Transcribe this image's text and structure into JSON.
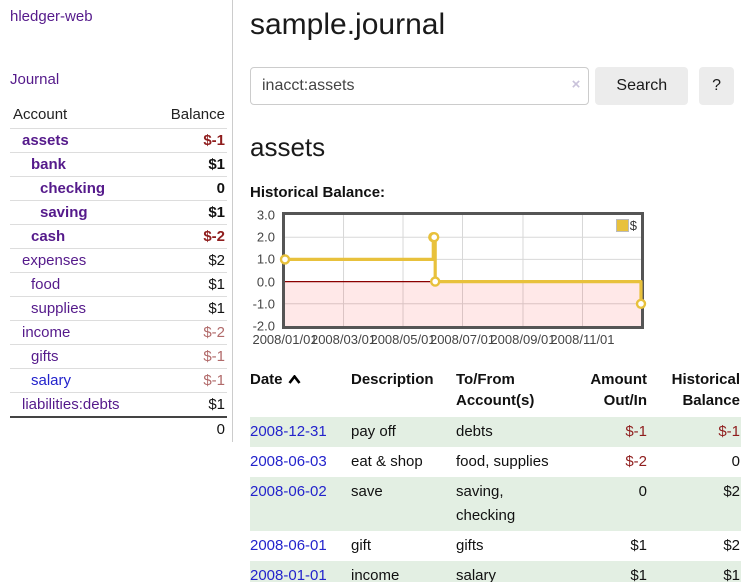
{
  "app": {
    "brand": "hledger-web",
    "nav_journal": "Journal"
  },
  "sidebar": {
    "headers": {
      "account": "Account",
      "balance": "Balance"
    },
    "accounts": [
      {
        "name": "assets",
        "level": 1,
        "bold": true,
        "balance": "$-1",
        "neg": "strong"
      },
      {
        "name": "bank",
        "level": 2,
        "bold": true,
        "balance": "$1"
      },
      {
        "name": "checking",
        "level": 3,
        "bold": true,
        "balance": "0"
      },
      {
        "name": "saving",
        "level": 3,
        "bold": true,
        "balance": "$1"
      },
      {
        "name": "cash",
        "level": 2,
        "bold": true,
        "balance": "$-2",
        "neg": "strong"
      },
      {
        "name": "expenses",
        "level": 1,
        "bold": false,
        "balance": "$2"
      },
      {
        "name": "food",
        "level": 2,
        "bold": false,
        "balance": "$1"
      },
      {
        "name": "supplies",
        "level": 2,
        "bold": false,
        "balance": "$1"
      },
      {
        "name": "income",
        "level": 1,
        "bold": false,
        "balance": "$-2",
        "neg": "light"
      },
      {
        "name": "gifts",
        "level": 2,
        "bold": false,
        "balance": "$-1",
        "neg": "light"
      },
      {
        "name": "salary",
        "level": 2,
        "bold": false,
        "balance": "$-1",
        "neg": "light",
        "link_color": "blue"
      },
      {
        "name": "liabilities:debts",
        "level": 1,
        "bold": false,
        "balance": "$1"
      }
    ],
    "total": "0"
  },
  "main": {
    "title": "sample.journal",
    "search": {
      "value": "inacct:assets",
      "clear_icon": "×",
      "search_button": "Search",
      "help_button": "?"
    },
    "account_heading": "assets",
    "section_heading": "Historical Balance:"
  },
  "chart_data": {
    "type": "line",
    "steps": true,
    "title": "Historical Balance:",
    "series": [
      {
        "name": "$",
        "points": [
          [
            "2008-01-01",
            1
          ],
          [
            "2008-06-01",
            2
          ],
          [
            "2008-06-02",
            2
          ],
          [
            "2008-06-03",
            0
          ],
          [
            "2008-12-31",
            -1
          ]
        ]
      }
    ],
    "x_range": [
      "2008-01-01",
      "2008-12-31"
    ],
    "ylim": [
      -2.0,
      3.0
    ],
    "ytick_values": [
      3,
      2,
      1,
      0,
      -1,
      -2
    ],
    "yticks": [
      "3.0",
      "2.0",
      "1.0",
      "0.0",
      "-1.0",
      "-2.0"
    ],
    "xticks": [
      {
        "date": "2008-01-01",
        "label": "2008/01/01"
      },
      {
        "date": "2008-03-01",
        "label": "2008/03/01"
      },
      {
        "date": "2008-05-01",
        "label": "2008/05/01"
      },
      {
        "date": "2008-07-01",
        "label": "2008/07/01"
      },
      {
        "date": "2008-09-01",
        "label": "2008/09/01"
      },
      {
        "date": "2008-11-01",
        "label": "2008/11/01"
      }
    ],
    "legend": {
      "label": "$",
      "position": "top-right"
    },
    "grid": true,
    "negative_region_shaded_below": 0
  },
  "register": {
    "headers": {
      "date": "Date",
      "description": "Description",
      "accounts": "To/From Account(s)",
      "amount": "Amount Out/In",
      "balance": "Historical Balance"
    },
    "rows": [
      {
        "date": "2008-12-31",
        "description": "pay off",
        "accounts": "debts",
        "amount": "$-1",
        "amount_neg": true,
        "balance": "$-1",
        "balance_neg": true
      },
      {
        "date": "2008-06-03",
        "description": "eat & shop",
        "accounts": "food, supplies",
        "amount": "$-2",
        "amount_neg": true,
        "balance": "0",
        "balance_neg": false
      },
      {
        "date": "2008-06-02",
        "description": "save",
        "accounts": "saving, checking",
        "amount": "0",
        "amount_neg": false,
        "balance": "$2",
        "balance_neg": false
      },
      {
        "date": "2008-06-01",
        "description": "gift",
        "accounts": "gifts",
        "amount": "$1",
        "amount_neg": false,
        "balance": "$2",
        "balance_neg": false
      },
      {
        "date": "2008-01-01",
        "description": "income",
        "accounts": "salary",
        "amount": "$1",
        "amount_neg": false,
        "balance": "$1",
        "balance_neg": false
      }
    ]
  },
  "colors": {
    "link_purple": "#551a8b",
    "link_blue": "#2323cc",
    "negative_strong": "#8f1d1d",
    "negative_light": "#b16a6a",
    "zebra_green": "#e3efe3",
    "series_gold": "#e8c13c",
    "zero_line": "#8b0000",
    "negative_fill": "rgba(255,0,0,0.09)",
    "grid_line": "#d8d8d8",
    "chart_border": "#555555",
    "button_bg": "#ececec"
  }
}
